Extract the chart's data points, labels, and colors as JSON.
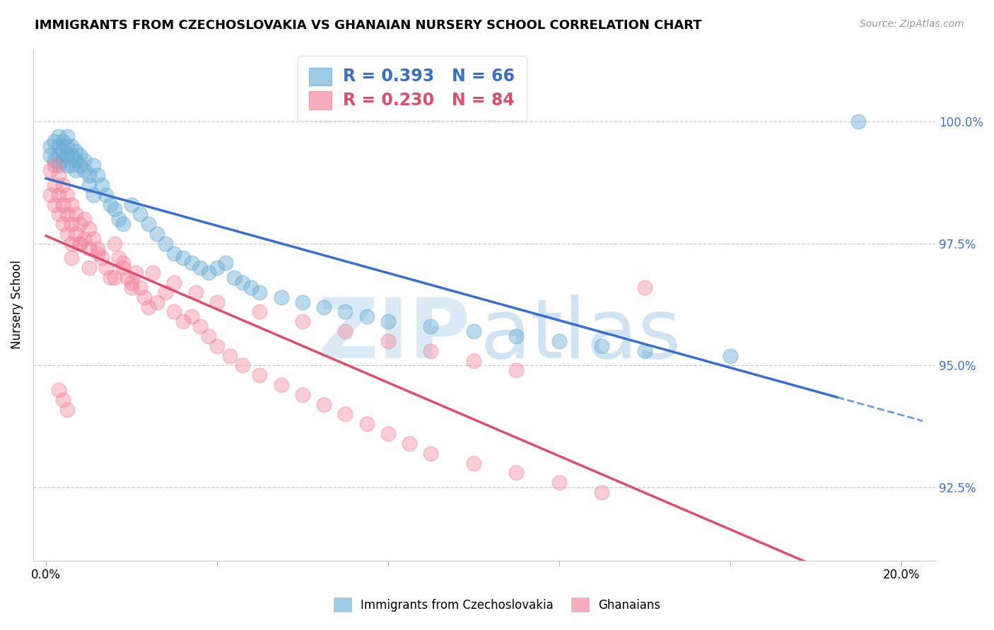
{
  "title": "IMMIGRANTS FROM CZECHOSLOVAKIA VS GHANAIAN NURSERY SCHOOL CORRELATION CHART",
  "source": "Source: ZipAtlas.com",
  "ylabel": "Nursery School",
  "legend1_label": "Immigrants from Czechoslovakia",
  "legend2_label": "Ghanaians",
  "R_blue": 0.393,
  "N_blue": 66,
  "R_pink": 0.23,
  "N_pink": 84,
  "blue_color": "#6baed6",
  "pink_color": "#f4829a",
  "blue_line_color": "#3a6fc4",
  "pink_line_color": "#d94f70",
  "watermark_color": "#daeaf7",
  "background_color": "#ffffff",
  "ytick_vals": [
    92.5,
    95.0,
    97.5,
    100.0
  ],
  "blue_x": [
    0.001,
    0.001,
    0.002,
    0.002,
    0.003,
    0.003,
    0.003,
    0.003,
    0.004,
    0.004,
    0.004,
    0.005,
    0.005,
    0.005,
    0.005,
    0.006,
    0.006,
    0.006,
    0.007,
    0.007,
    0.007,
    0.008,
    0.008,
    0.009,
    0.009,
    0.01,
    0.01,
    0.011,
    0.011,
    0.012,
    0.013,
    0.014,
    0.015,
    0.016,
    0.017,
    0.018,
    0.02,
    0.022,
    0.024,
    0.026,
    0.028,
    0.03,
    0.032,
    0.034,
    0.036,
    0.038,
    0.04,
    0.042,
    0.044,
    0.046,
    0.048,
    0.05,
    0.055,
    0.06,
    0.065,
    0.07,
    0.075,
    0.08,
    0.09,
    0.1,
    0.11,
    0.12,
    0.13,
    0.14,
    0.16,
    0.19
  ],
  "blue_y": [
    99.5,
    99.3,
    99.6,
    99.2,
    99.7,
    99.5,
    99.3,
    99.1,
    99.6,
    99.4,
    99.2,
    99.7,
    99.5,
    99.3,
    99.1,
    99.5,
    99.3,
    99.1,
    99.4,
    99.2,
    99.0,
    99.3,
    99.1,
    99.2,
    99.0,
    98.9,
    98.7,
    99.1,
    98.5,
    98.9,
    98.7,
    98.5,
    98.3,
    98.2,
    98.0,
    97.9,
    98.3,
    98.1,
    97.9,
    97.7,
    97.5,
    97.3,
    97.2,
    97.1,
    97.0,
    96.9,
    97.0,
    97.1,
    96.8,
    96.7,
    96.6,
    96.5,
    96.4,
    96.3,
    96.2,
    96.1,
    96.0,
    95.9,
    95.8,
    95.7,
    95.6,
    95.5,
    95.4,
    95.3,
    95.2,
    100.0
  ],
  "pink_x": [
    0.001,
    0.001,
    0.002,
    0.002,
    0.002,
    0.003,
    0.003,
    0.003,
    0.004,
    0.004,
    0.004,
    0.005,
    0.005,
    0.005,
    0.006,
    0.006,
    0.006,
    0.007,
    0.007,
    0.008,
    0.008,
    0.009,
    0.009,
    0.01,
    0.01,
    0.011,
    0.012,
    0.013,
    0.014,
    0.015,
    0.016,
    0.017,
    0.018,
    0.019,
    0.02,
    0.021,
    0.022,
    0.023,
    0.024,
    0.026,
    0.028,
    0.03,
    0.032,
    0.034,
    0.036,
    0.038,
    0.04,
    0.043,
    0.046,
    0.05,
    0.055,
    0.06,
    0.065,
    0.07,
    0.075,
    0.08,
    0.085,
    0.09,
    0.1,
    0.11,
    0.12,
    0.13,
    0.006,
    0.01,
    0.016,
    0.02,
    0.008,
    0.012,
    0.018,
    0.025,
    0.03,
    0.035,
    0.04,
    0.05,
    0.06,
    0.07,
    0.08,
    0.09,
    0.1,
    0.11,
    0.003,
    0.004,
    0.005,
    0.14
  ],
  "pink_y": [
    99.0,
    98.5,
    99.1,
    98.7,
    98.3,
    98.9,
    98.5,
    98.1,
    98.7,
    98.3,
    97.9,
    98.5,
    98.1,
    97.7,
    98.3,
    97.9,
    97.5,
    98.1,
    97.7,
    97.9,
    97.5,
    98.0,
    97.6,
    97.8,
    97.4,
    97.6,
    97.4,
    97.2,
    97.0,
    96.8,
    97.5,
    97.2,
    97.0,
    96.8,
    96.7,
    96.9,
    96.6,
    96.4,
    96.2,
    96.3,
    96.5,
    96.1,
    95.9,
    96.0,
    95.8,
    95.6,
    95.4,
    95.2,
    95.0,
    94.8,
    94.6,
    94.4,
    94.2,
    94.0,
    93.8,
    93.6,
    93.4,
    93.2,
    93.0,
    92.8,
    92.6,
    92.4,
    97.2,
    97.0,
    96.8,
    96.6,
    97.5,
    97.3,
    97.1,
    96.9,
    96.7,
    96.5,
    96.3,
    96.1,
    95.9,
    95.7,
    95.5,
    95.3,
    95.1,
    94.9,
    94.5,
    94.3,
    94.1,
    96.6
  ]
}
